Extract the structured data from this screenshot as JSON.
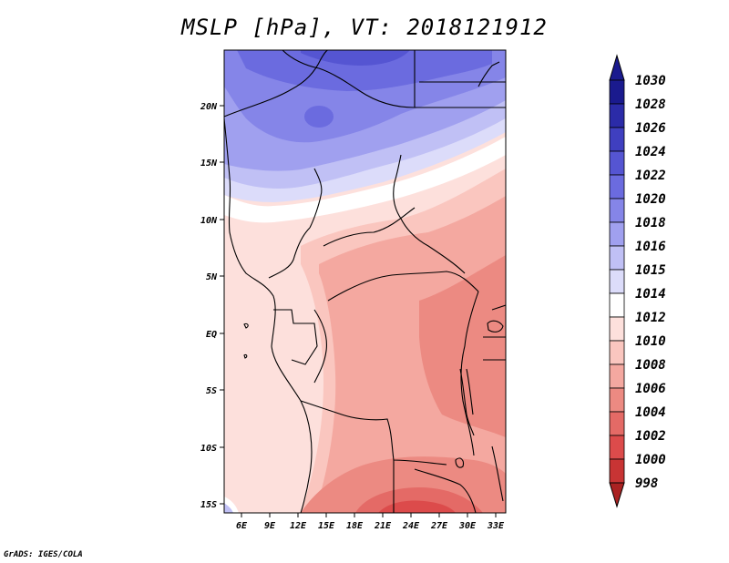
{
  "title": "MSLP [hPa], VT: 2018121912",
  "credit": "GrADS: IGES/COLA",
  "map": {
    "lon_ticks": [
      "6E",
      "9E",
      "12E",
      "15E",
      "18E",
      "21E",
      "24E",
      "27E",
      "30E",
      "33E"
    ],
    "lat_ticks": [
      "20N",
      "15N",
      "10N",
      "5N",
      "EQ",
      "5S",
      "10S",
      "15S"
    ]
  },
  "colorbar": {
    "labels": [
      "1030",
      "1028",
      "1026",
      "1024",
      "1022",
      "1020",
      "1018",
      "1016",
      "1015",
      "1014",
      "1012",
      "1010",
      "1008",
      "1006",
      "1004",
      "1002",
      "1000",
      "998"
    ],
    "colors": [
      "#1a1a8e",
      "#2b2ba8",
      "#3f3fc0",
      "#5555d2",
      "#6b6bdf",
      "#8585e8",
      "#a0a0ef",
      "#c0c0f5",
      "#dcdcfa",
      "#ffffff",
      "#fde0dc",
      "#fac6bf",
      "#f4a8a0",
      "#ec8a82",
      "#e46a66",
      "#dc4b4b",
      "#c83434",
      "#aa2222"
    ],
    "top_arrow_color": "#1a1a8e",
    "bottom_arrow_color": "#aa2222"
  }
}
